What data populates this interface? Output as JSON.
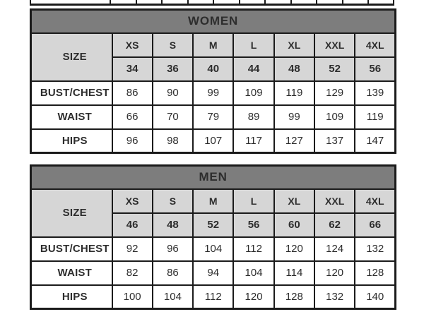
{
  "colors": {
    "header_bg": "#7d7d7d",
    "header_text": "#ffffff",
    "size_row_bg": "#d6d6d6",
    "cell_bg": "#ffffff",
    "border": "#1b1b1b",
    "text": "#2d2d2d"
  },
  "chart_data": [
    {
      "type": "table",
      "title": "WOMEN",
      "size_label": "SIZE",
      "size_names": [
        "XS",
        "S",
        "M",
        "L",
        "XL",
        "XXL",
        "4XL"
      ],
      "size_numbers": [
        "34",
        "36",
        "40",
        "44",
        "48",
        "52",
        "56"
      ],
      "rows": [
        {
          "label": "BUST/CHEST",
          "values": [
            "86",
            "90",
            "99",
            "109",
            "119",
            "129",
            "139"
          ]
        },
        {
          "label": "WAIST",
          "values": [
            "66",
            "70",
            "79",
            "89",
            "99",
            "109",
            "119"
          ]
        },
        {
          "label": "HIPS",
          "values": [
            "96",
            "98",
            "107",
            "117",
            "127",
            "137",
            "147"
          ]
        }
      ]
    },
    {
      "type": "table",
      "title": "MEN",
      "size_label": "SIZE",
      "size_names": [
        "XS",
        "S",
        "M",
        "L",
        "XL",
        "XXL",
        "4XL"
      ],
      "size_numbers": [
        "46",
        "48",
        "52",
        "56",
        "60",
        "62",
        "66"
      ],
      "rows": [
        {
          "label": "BUST/CHEST",
          "values": [
            "92",
            "96",
            "104",
            "112",
            "120",
            "124",
            "132"
          ]
        },
        {
          "label": "WAIST",
          "values": [
            "82",
            "86",
            "94",
            "104",
            "114",
            "120",
            "128"
          ]
        },
        {
          "label": "HIPS",
          "values": [
            "100",
            "104",
            "112",
            "120",
            "128",
            "132",
            "140"
          ]
        }
      ]
    }
  ]
}
